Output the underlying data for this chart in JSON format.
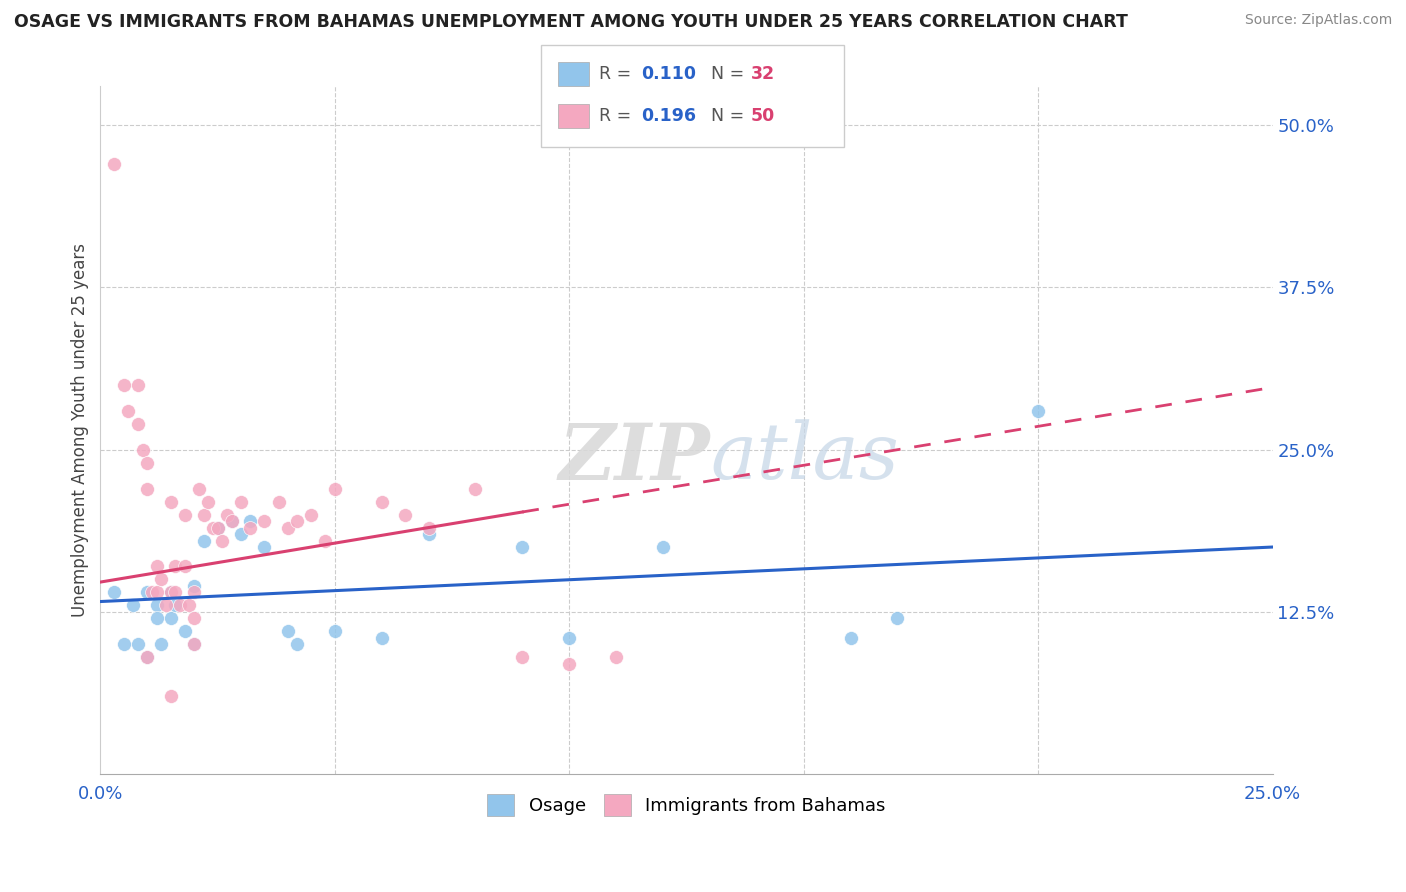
{
  "title": "OSAGE VS IMMIGRANTS FROM BAHAMAS UNEMPLOYMENT AMONG YOUTH UNDER 25 YEARS CORRELATION CHART",
  "source": "Source: ZipAtlas.com",
  "ylabel": "Unemployment Among Youth under 25 years",
  "xlim": [
    0.0,
    0.25
  ],
  "ylim": [
    0.0,
    0.53
  ],
  "ytick_right_labels": [
    "12.5%",
    "25.0%",
    "37.5%",
    "50.0%"
  ],
  "ytick_right_values": [
    0.125,
    0.25,
    0.375,
    0.5
  ],
  "color_osage": "#92C5EB",
  "color_bahamas": "#F4A8C0",
  "color_line_osage": "#2962C8",
  "color_line_bahamas": "#D94070",
  "legend_label1": "Osage",
  "legend_label2": "Immigrants from Bahamas",
  "watermark": "ZIPatlas",
  "osage_x": [
    0.003,
    0.005,
    0.007,
    0.008,
    0.01,
    0.01,
    0.012,
    0.012,
    0.013,
    0.015,
    0.015,
    0.016,
    0.018,
    0.02,
    0.02,
    0.022,
    0.025,
    0.028,
    0.03,
    0.032,
    0.035,
    0.04,
    0.042,
    0.05,
    0.06,
    0.07,
    0.09,
    0.1,
    0.16,
    0.17,
    0.12,
    0.2
  ],
  "osage_y": [
    0.14,
    0.1,
    0.13,
    0.1,
    0.14,
    0.09,
    0.13,
    0.12,
    0.1,
    0.14,
    0.12,
    0.13,
    0.11,
    0.145,
    0.1,
    0.18,
    0.19,
    0.195,
    0.185,
    0.195,
    0.175,
    0.11,
    0.1,
    0.11,
    0.105,
    0.185,
    0.175,
    0.105,
    0.105,
    0.12,
    0.175,
    0.28
  ],
  "bahamas_x": [
    0.003,
    0.005,
    0.006,
    0.008,
    0.008,
    0.009,
    0.01,
    0.01,
    0.011,
    0.012,
    0.012,
    0.013,
    0.014,
    0.015,
    0.015,
    0.016,
    0.016,
    0.017,
    0.018,
    0.018,
    0.019,
    0.02,
    0.02,
    0.021,
    0.022,
    0.023,
    0.024,
    0.025,
    0.026,
    0.027,
    0.028,
    0.03,
    0.032,
    0.035,
    0.038,
    0.04,
    0.042,
    0.045,
    0.048,
    0.05,
    0.06,
    0.065,
    0.07,
    0.08,
    0.09,
    0.1,
    0.11,
    0.02,
    0.01,
    0.015
  ],
  "bahamas_y": [
    0.47,
    0.3,
    0.28,
    0.3,
    0.27,
    0.25,
    0.24,
    0.22,
    0.14,
    0.16,
    0.14,
    0.15,
    0.13,
    0.21,
    0.14,
    0.14,
    0.16,
    0.13,
    0.2,
    0.16,
    0.13,
    0.14,
    0.12,
    0.22,
    0.2,
    0.21,
    0.19,
    0.19,
    0.18,
    0.2,
    0.195,
    0.21,
    0.19,
    0.195,
    0.21,
    0.19,
    0.195,
    0.2,
    0.18,
    0.22,
    0.21,
    0.2,
    0.19,
    0.22,
    0.09,
    0.085,
    0.09,
    0.1,
    0.09,
    0.06
  ]
}
